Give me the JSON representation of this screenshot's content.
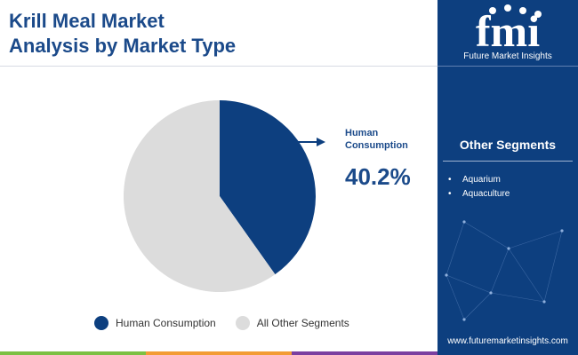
{
  "title": {
    "line1": "Krill Meal Market",
    "line2": "Analysis by Market Type"
  },
  "brand": {
    "logo_text": "fmi",
    "name": "Future Market Insights",
    "website": "www.futuremarketinsights.com"
  },
  "sidebar": {
    "title": "Other Segments",
    "items": [
      "Aquarium",
      "Aquaculture"
    ]
  },
  "callout": {
    "label_line1": "Human",
    "label_line2": "Consumption",
    "value": "40.2%"
  },
  "colors": {
    "primary": "#0d3f7f",
    "secondary": "#dcdcdc",
    "accent_green": "#7cc043",
    "accent_orange": "#f39c34",
    "accent_purple": "#7b3fa0"
  },
  "chart_data": {
    "type": "pie",
    "title": "Krill Meal Market Analysis by Market Type",
    "categories": [
      "Human Consumption",
      "All Other Segments"
    ],
    "values": [
      40.2,
      59.8
    ],
    "colors": [
      "#0d3f7f",
      "#dcdcdc"
    ],
    "start_angle_deg": 0,
    "direction": "clockwise",
    "legend_position": "bottom"
  }
}
